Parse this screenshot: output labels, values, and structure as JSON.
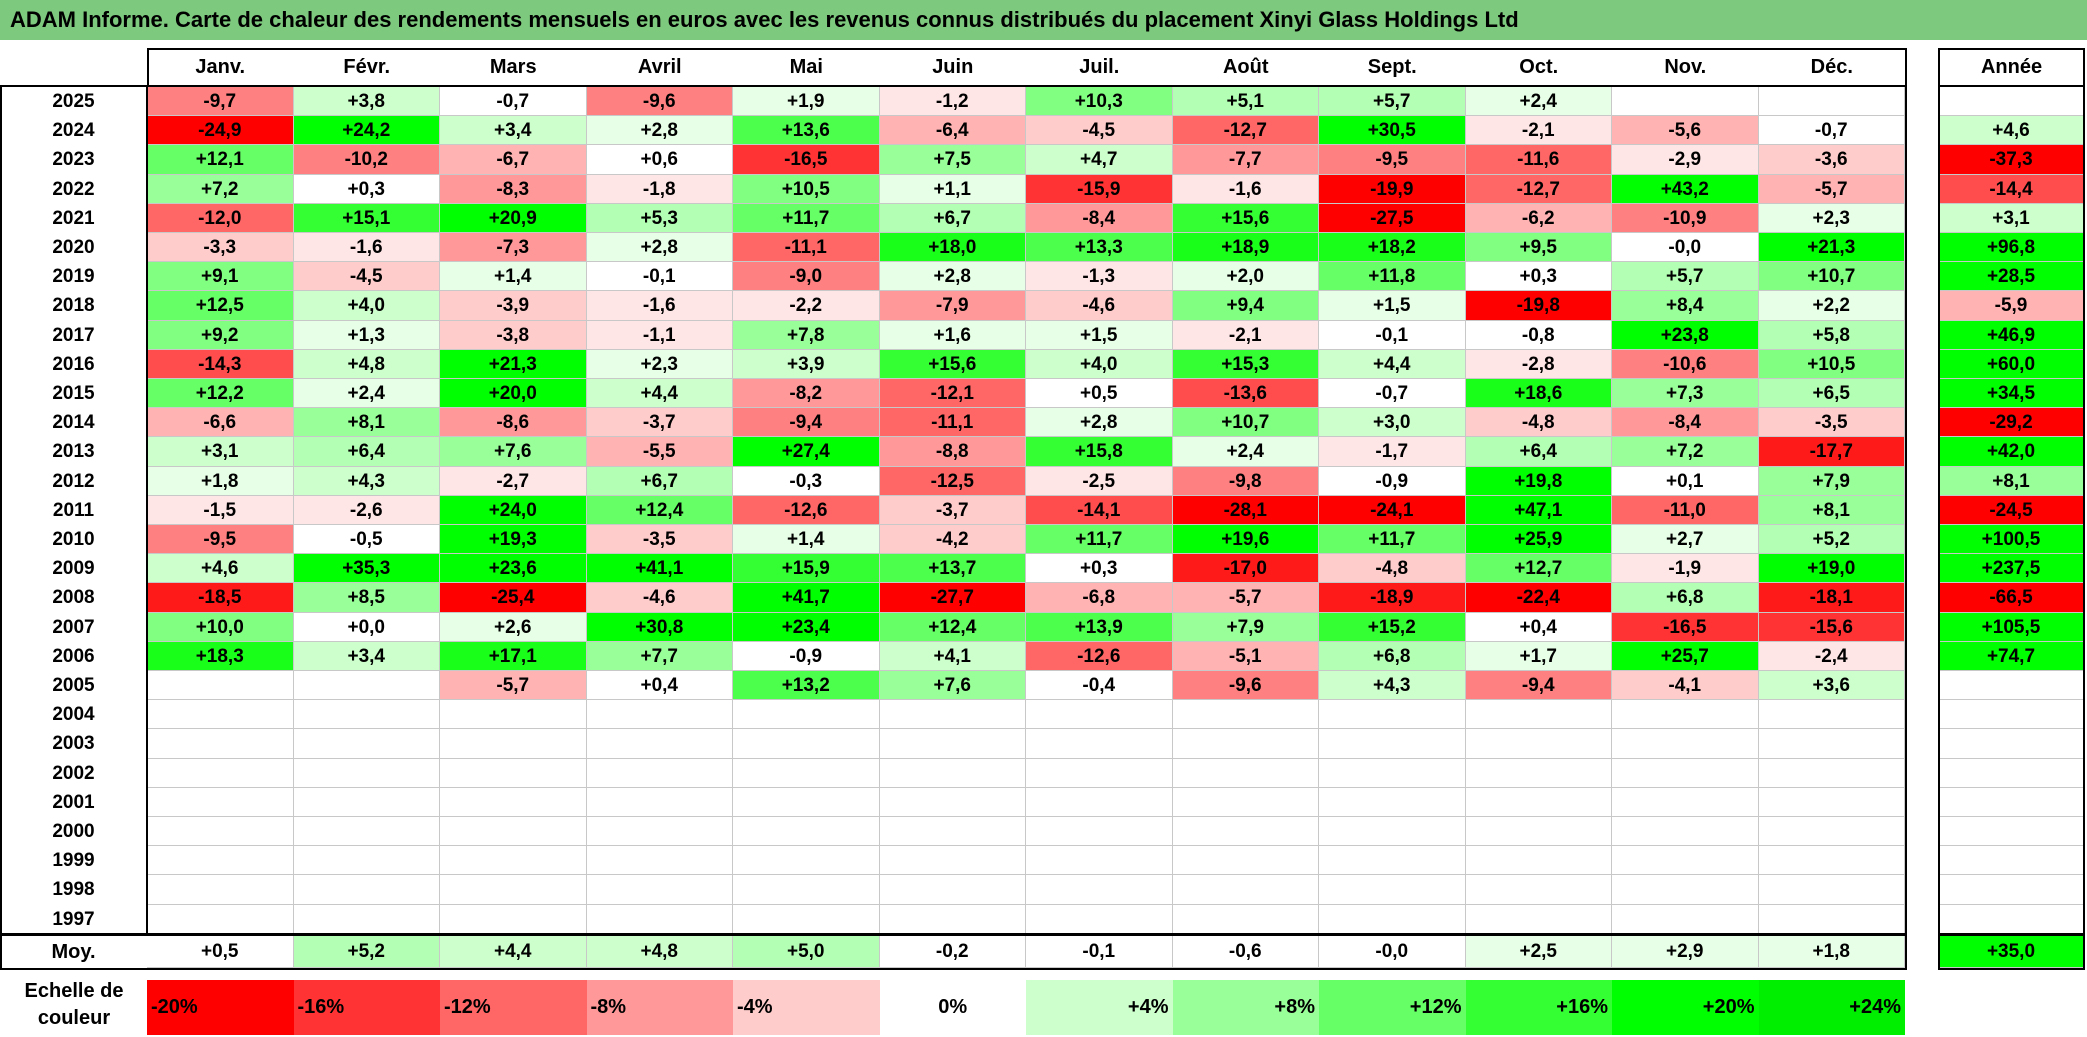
{
  "title": "ADAM Informe. Carte de chaleur des rendements mensuels en euros avec les revenus connus distribués du placement Xinyi Glass Holdings Ltd",
  "chart_data": {
    "type": "heatmap",
    "columns": [
      "Janv.",
      "Févr.",
      "Mars",
      "Avril",
      "Mai",
      "Juin",
      "Juil.",
      "Août",
      "Sept.",
      "Oct.",
      "Nov.",
      "Déc."
    ],
    "annual_header": "Année",
    "rows": [
      {
        "year": "2025",
        "months": [
          "-9,7",
          "+3,8",
          "-0,7",
          "-9,6",
          "+1,9",
          "-1,2",
          "+10,3",
          "+5,1",
          "+5,7",
          "+2,4",
          "",
          ""
        ],
        "annual": ""
      },
      {
        "year": "2024",
        "months": [
          "-24,9",
          "+24,2",
          "+3,4",
          "+2,8",
          "+13,6",
          "-6,4",
          "-4,5",
          "-12,7",
          "+30,5",
          "-2,1",
          "-5,6",
          "-0,7"
        ],
        "annual": "+4,6"
      },
      {
        "year": "2023",
        "months": [
          "+12,1",
          "-10,2",
          "-6,7",
          "+0,6",
          "-16,5",
          "+7,5",
          "+4,7",
          "-7,7",
          "-9,5",
          "-11,6",
          "-2,9",
          "-3,6"
        ],
        "annual": "-37,3"
      },
      {
        "year": "2022",
        "months": [
          "+7,2",
          "+0,3",
          "-8,3",
          "-1,8",
          "+10,5",
          "+1,1",
          "-15,9",
          "-1,6",
          "-19,9",
          "-12,7",
          "+43,2",
          "-5,7"
        ],
        "annual": "-14,4"
      },
      {
        "year": "2021",
        "months": [
          "-12,0",
          "+15,1",
          "+20,9",
          "+5,3",
          "+11,7",
          "+6,7",
          "-8,4",
          "+15,6",
          "-27,5",
          "-6,2",
          "-10,9",
          "+2,3"
        ],
        "annual": "+3,1"
      },
      {
        "year": "2020",
        "months": [
          "-3,3",
          "-1,6",
          "-7,3",
          "+2,8",
          "-11,1",
          "+18,0",
          "+13,3",
          "+18,9",
          "+18,2",
          "+9,5",
          "-0,0",
          "+21,3"
        ],
        "annual": "+96,8"
      },
      {
        "year": "2019",
        "months": [
          "+9,1",
          "-4,5",
          "+1,4",
          "-0,1",
          "-9,0",
          "+2,8",
          "-1,3",
          "+2,0",
          "+11,8",
          "+0,3",
          "+5,7",
          "+10,7"
        ],
        "annual": "+28,5"
      },
      {
        "year": "2018",
        "months": [
          "+12,5",
          "+4,0",
          "-3,9",
          "-1,6",
          "-2,2",
          "-7,9",
          "-4,6",
          "+9,4",
          "+1,5",
          "-19,8",
          "+8,4",
          "+2,2"
        ],
        "annual": "-5,9"
      },
      {
        "year": "2017",
        "months": [
          "+9,2",
          "+1,3",
          "-3,8",
          "-1,1",
          "+7,8",
          "+1,6",
          "+1,5",
          "-2,1",
          "-0,1",
          "-0,8",
          "+23,8",
          "+5,8"
        ],
        "annual": "+46,9"
      },
      {
        "year": "2016",
        "months": [
          "-14,3",
          "+4,8",
          "+21,3",
          "+2,3",
          "+3,9",
          "+15,6",
          "+4,0",
          "+15,3",
          "+4,4",
          "-2,8",
          "-10,6",
          "+10,5"
        ],
        "annual": "+60,0"
      },
      {
        "year": "2015",
        "months": [
          "+12,2",
          "+2,4",
          "+20,0",
          "+4,4",
          "-8,2",
          "-12,1",
          "+0,5",
          "-13,6",
          "-0,7",
          "+18,6",
          "+7,3",
          "+6,5"
        ],
        "annual": "+34,5"
      },
      {
        "year": "2014",
        "months": [
          "-6,6",
          "+8,1",
          "-8,6",
          "-3,7",
          "-9,4",
          "-11,1",
          "+2,8",
          "+10,7",
          "+3,0",
          "-4,8",
          "-8,4",
          "-3,5"
        ],
        "annual": "-29,2"
      },
      {
        "year": "2013",
        "months": [
          "+3,1",
          "+6,4",
          "+7,6",
          "-5,5",
          "+27,4",
          "-8,8",
          "+15,8",
          "+2,4",
          "-1,7",
          "+6,4",
          "+7,2",
          "-17,7"
        ],
        "annual": "+42,0"
      },
      {
        "year": "2012",
        "months": [
          "+1,8",
          "+4,3",
          "-2,7",
          "+6,7",
          "-0,3",
          "-12,5",
          "-2,5",
          "-9,8",
          "-0,9",
          "+19,8",
          "+0,1",
          "+7,9"
        ],
        "annual": "+8,1"
      },
      {
        "year": "2011",
        "months": [
          "-1,5",
          "-2,6",
          "+24,0",
          "+12,4",
          "-12,6",
          "-3,7",
          "-14,1",
          "-28,1",
          "-24,1",
          "+47,1",
          "-11,0",
          "+8,1"
        ],
        "annual": "-24,5"
      },
      {
        "year": "2010",
        "months": [
          "-9,5",
          "-0,5",
          "+19,3",
          "-3,5",
          "+1,4",
          "-4,2",
          "+11,7",
          "+19,6",
          "+11,7",
          "+25,9",
          "+2,7",
          "+5,2"
        ],
        "annual": "+100,5"
      },
      {
        "year": "2009",
        "months": [
          "+4,6",
          "+35,3",
          "+23,6",
          "+41,1",
          "+15,9",
          "+13,7",
          "+0,3",
          "-17,0",
          "-4,8",
          "+12,7",
          "-1,9",
          "+19,0"
        ],
        "annual": "+237,5"
      },
      {
        "year": "2008",
        "months": [
          "-18,5",
          "+8,5",
          "-25,4",
          "-4,6",
          "+41,7",
          "-27,7",
          "-6,8",
          "-5,7",
          "-18,9",
          "-22,4",
          "+6,8",
          "-18,1"
        ],
        "annual": "-66,5"
      },
      {
        "year": "2007",
        "months": [
          "+10,0",
          "+0,0",
          "+2,6",
          "+30,8",
          "+23,4",
          "+12,4",
          "+13,9",
          "+7,9",
          "+15,2",
          "+0,4",
          "-16,5",
          "-15,6"
        ],
        "annual": "+105,5"
      },
      {
        "year": "2006",
        "months": [
          "+18,3",
          "+3,4",
          "+17,1",
          "+7,7",
          "-0,9",
          "+4,1",
          "-12,6",
          "-5,1",
          "+6,8",
          "+1,7",
          "+25,7",
          "-2,4"
        ],
        "annual": "+74,7"
      },
      {
        "year": "2005",
        "months": [
          "",
          "",
          "-5,7",
          "+0,4",
          "+13,2",
          "+7,6",
          "-0,4",
          "-9,6",
          "+4,3",
          "-9,4",
          "-4,1",
          "+3,6"
        ],
        "annual": ""
      },
      {
        "year": "2004",
        "months": [
          "",
          "",
          "",
          "",
          "",
          "",
          "",
          "",
          "",
          "",
          "",
          ""
        ],
        "annual": ""
      },
      {
        "year": "2003",
        "months": [
          "",
          "",
          "",
          "",
          "",
          "",
          "",
          "",
          "",
          "",
          "",
          ""
        ],
        "annual": ""
      },
      {
        "year": "2002",
        "months": [
          "",
          "",
          "",
          "",
          "",
          "",
          "",
          "",
          "",
          "",
          "",
          ""
        ],
        "annual": ""
      },
      {
        "year": "2001",
        "months": [
          "",
          "",
          "",
          "",
          "",
          "",
          "",
          "",
          "",
          "",
          "",
          ""
        ],
        "annual": ""
      },
      {
        "year": "2000",
        "months": [
          "",
          "",
          "",
          "",
          "",
          "",
          "",
          "",
          "",
          "",
          "",
          ""
        ],
        "annual": ""
      },
      {
        "year": "1999",
        "months": [
          "",
          "",
          "",
          "",
          "",
          "",
          "",
          "",
          "",
          "",
          "",
          ""
        ],
        "annual": ""
      },
      {
        "year": "1998",
        "months": [
          "",
          "",
          "",
          "",
          "",
          "",
          "",
          "",
          "",
          "",
          "",
          ""
        ],
        "annual": ""
      },
      {
        "year": "1997",
        "months": [
          "",
          "",
          "",
          "",
          "",
          "",
          "",
          "",
          "",
          "",
          "",
          ""
        ],
        "annual": ""
      }
    ],
    "average": {
      "label": "Moy.",
      "months": [
        "+0,5",
        "+5,2",
        "+4,4",
        "+4,8",
        "+5,0",
        "-0,2",
        "-0,1",
        "-0,6",
        "-0,0",
        "+2,5",
        "+2,9",
        "+1,8"
      ],
      "annual": "+35,0"
    },
    "color_scale": {
      "label": "Echelle de couleur",
      "steps": [
        {
          "label": "-20%",
          "value": -20,
          "color": "#ff0000"
        },
        {
          "label": "-16%",
          "value": -16,
          "color": "#ff3333"
        },
        {
          "label": "-12%",
          "value": -12,
          "color": "#ff6666"
        },
        {
          "label": "-8%",
          "value": -8,
          "color": "#ff9999"
        },
        {
          "label": "-4%",
          "value": -4,
          "color": "#ffcccc"
        },
        {
          "label": "0%",
          "value": 0,
          "color": "#ffffff"
        },
        {
          "label": "+4%",
          "value": 4,
          "color": "#ccffcc"
        },
        {
          "label": "+8%",
          "value": 8,
          "color": "#99ff99"
        },
        {
          "label": "+12%",
          "value": 12,
          "color": "#66ff66"
        },
        {
          "label": "+16%",
          "value": 16,
          "color": "#33ff33"
        },
        {
          "label": "+20%",
          "value": 20,
          "color": "#00ff00"
        },
        {
          "label": "+24%",
          "value": 24,
          "color": "#00ee00"
        }
      ]
    }
  }
}
